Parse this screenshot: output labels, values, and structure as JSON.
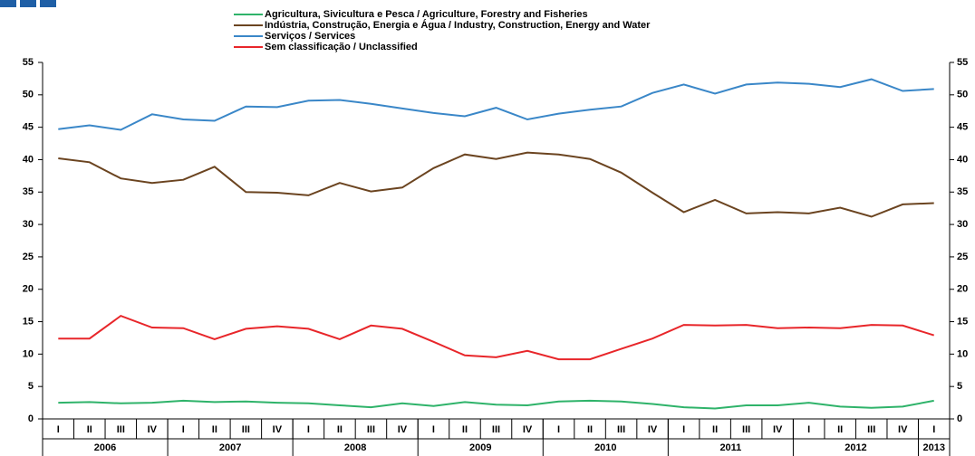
{
  "chart_data": {
    "type": "line",
    "categories": [
      "I",
      "II",
      "III",
      "IV",
      "I",
      "II",
      "III",
      "IV",
      "I",
      "II",
      "III",
      "IV",
      "I",
      "II",
      "III",
      "IV",
      "I",
      "II",
      "III",
      "IV",
      "I",
      "II",
      "III",
      "IV",
      "I",
      "II",
      "III",
      "IV",
      "I"
    ],
    "year_groups": [
      {
        "label": "2006",
        "count": 4
      },
      {
        "label": "2007",
        "count": 4
      },
      {
        "label": "2008",
        "count": 4
      },
      {
        "label": "2009",
        "count": 4
      },
      {
        "label": "2010",
        "count": 4
      },
      {
        "label": "2011",
        "count": 4
      },
      {
        "label": "2012",
        "count": 4
      },
      {
        "label": "2013",
        "count": 1
      }
    ],
    "series": [
      {
        "name": "Agricultura, Sivicultura e Pesca / Agriculture, Forestry and Fisheries",
        "color": "#2fb36a",
        "values": [
          2.5,
          2.6,
          2.4,
          2.5,
          2.8,
          2.6,
          2.7,
          2.5,
          2.4,
          2.1,
          1.8,
          2.4,
          2.0,
          2.6,
          2.2,
          2.1,
          2.7,
          2.8,
          2.7,
          2.3,
          1.8,
          1.6,
          2.1,
          2.1,
          2.5,
          1.9,
          1.7,
          1.9,
          2.8
        ]
      },
      {
        "name": "Indústria, Construção, Energia e Água / Industry, Construction, Energy and Water",
        "color": "#6b4420",
        "values": [
          40.2,
          39.6,
          37.1,
          36.4,
          36.9,
          38.9,
          35.0,
          34.9,
          34.5,
          36.4,
          35.1,
          35.7,
          38.7,
          40.8,
          40.1,
          41.1,
          40.8,
          40.1,
          38.0,
          34.9,
          31.9,
          33.8,
          31.7,
          31.9,
          31.7,
          32.6,
          31.2,
          33.1,
          33.3
        ]
      },
      {
        "name": "Serviços / Services",
        "color": "#3a87c8",
        "values": [
          44.7,
          45.3,
          44.6,
          47.0,
          46.2,
          46.0,
          48.2,
          48.1,
          49.1,
          49.2,
          48.6,
          47.9,
          47.2,
          46.7,
          48.0,
          46.2,
          47.1,
          47.7,
          48.2,
          50.3,
          51.6,
          50.2,
          51.6,
          51.9,
          51.7,
          51.2,
          52.4,
          50.6,
          50.9
        ]
      },
      {
        "name": "Sem classificação / Unclassified",
        "color": "#e8262a",
        "values": [
          12.4,
          12.4,
          15.9,
          14.1,
          14.0,
          12.3,
          13.9,
          14.3,
          13.9,
          12.3,
          14.4,
          13.9,
          11.9,
          9.8,
          9.5,
          10.5,
          9.2,
          9.2,
          10.8,
          12.4,
          14.5,
          14.4,
          14.5,
          14.0,
          14.1,
          14.0,
          14.5,
          14.4,
          12.9
        ]
      }
    ],
    "ylim": [
      0,
      55
    ],
    "yticks": [
      0,
      5,
      10,
      15,
      20,
      25,
      30,
      35,
      40,
      45,
      50,
      55
    ],
    "grid": false,
    "legend": "top"
  }
}
